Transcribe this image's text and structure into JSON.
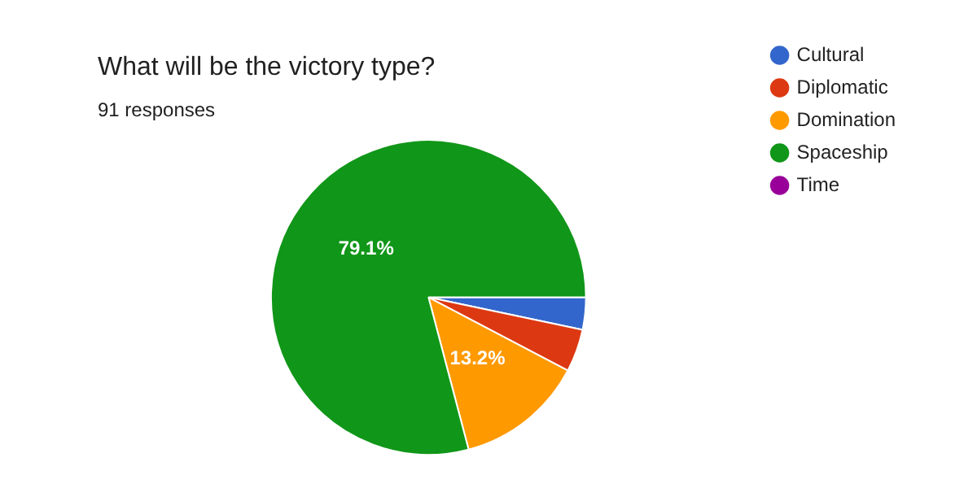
{
  "chart_data": {
    "type": "pie",
    "title": "What will be the victory type?",
    "subtitle": "91 responses",
    "categories": [
      "Cultural",
      "Diplomatic",
      "Domination",
      "Spaceship",
      "Time"
    ],
    "values": [
      3.3,
      4.4,
      13.2,
      79.1,
      0
    ],
    "colors": [
      "#3366cc",
      "#dc3912",
      "#ff9900",
      "#109618",
      "#990099"
    ],
    "value_labels": [
      null,
      null,
      "13.2%",
      "79.1%",
      null
    ],
    "legend": "right"
  }
}
